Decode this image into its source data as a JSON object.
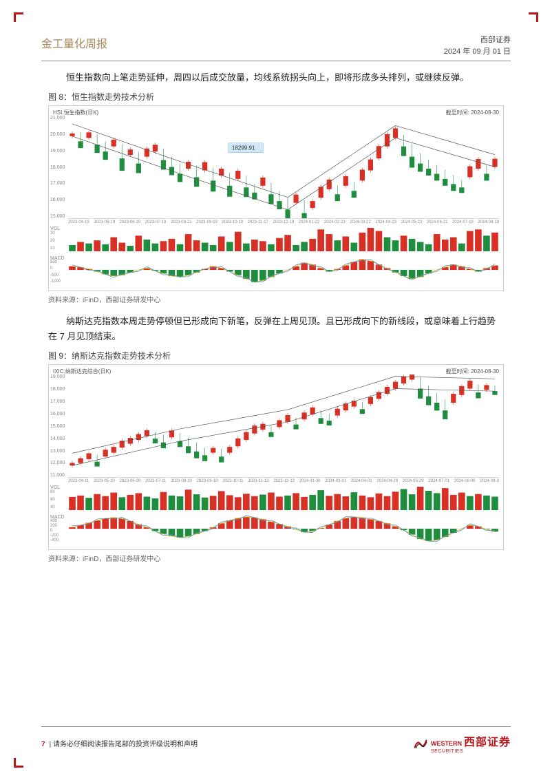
{
  "header": {
    "report_type": "金工量化周报",
    "company": "西部证券",
    "date": "2024 年 09 月 01 日"
  },
  "para1": "恒生指数向上笔走势延伸，周四以后成交放量，均线系统拐头向上，即将形成多头排列，或继续反弹。",
  "fig8": {
    "label": "图 8：",
    "title": "恒生指数走势技术分析",
    "chart_name": "HSI.恒生指数(日K)",
    "end_date_label": "截至时间: 2024-08-30",
    "annotation": "18299.91",
    "y_ticks": [
      "21,000",
      "20,000",
      "19,000",
      "18,000",
      "17,000",
      "16,000",
      "15,000"
    ],
    "x_ticks": [
      "2023-04-19",
      "2023-05-19",
      "2023-06-19",
      "2023-07-19",
      "2023-08-21",
      "2023-09-19",
      "2023-10-19",
      "2023-11-17",
      "2023-12-19",
      "2024-01-22",
      "2024-02-23",
      "2024-03-22",
      "2024-04-23",
      "2024-05-23",
      "2024-06-21",
      "2024-07-19",
      "2024-08-19"
    ],
    "vol_label": "VOL",
    "vol_y": [
      "30",
      "20",
      "10"
    ],
    "macd_label": "MACD",
    "macd_y": [
      "500",
      "0",
      "-500",
      "-1000"
    ],
    "price_series": [
      19800,
      19500,
      19700,
      19300,
      18900,
      19200,
      18500,
      18700,
      18200,
      18600,
      18900,
      18400,
      18000,
      17600,
      17900,
      17400,
      17800,
      17200,
      17500,
      16900,
      17300,
      16800,
      16500,
      16900,
      16400,
      16000,
      15500,
      15900,
      15300,
      15600,
      16200,
      16700,
      16400,
      16900,
      16600,
      17200,
      17800,
      18500,
      19200,
      19700,
      19200,
      18600,
      18200,
      17900,
      17600,
      17300,
      17000,
      16800,
      17400,
      17900,
      17600,
      18000
    ],
    "ylim": [
      15000,
      21000
    ],
    "vol_series": [
      8,
      12,
      10,
      14,
      9,
      18,
      11,
      7,
      20,
      15,
      10,
      13,
      16,
      9,
      22,
      14,
      11,
      8,
      19,
      12,
      25,
      10,
      15,
      13,
      9,
      17,
      21,
      8,
      12,
      16,
      28,
      22,
      14,
      19,
      11,
      24,
      30,
      26,
      18,
      14,
      20,
      16,
      12,
      9,
      22,
      15,
      18,
      10,
      26,
      28,
      20,
      24
    ],
    "vol_colors": [
      "g",
      "r",
      "g",
      "r",
      "g",
      "r",
      "r",
      "g",
      "r",
      "g",
      "g",
      "r",
      "r",
      "g",
      "r",
      "r",
      "g",
      "g",
      "r",
      "g",
      "r",
      "g",
      "r",
      "r",
      "g",
      "r",
      "r",
      "g",
      "g",
      "r",
      "r",
      "r",
      "g",
      "r",
      "g",
      "r",
      "r",
      "r",
      "g",
      "g",
      "r",
      "g",
      "g",
      "g",
      "r",
      "r",
      "r",
      "g",
      "r",
      "r",
      "g",
      "r"
    ],
    "macd_series": [
      200,
      150,
      50,
      -100,
      -250,
      -350,
      -300,
      -150,
      0,
      100,
      -50,
      -200,
      -350,
      -400,
      -300,
      -150,
      50,
      200,
      100,
      -100,
      -300,
      -500,
      -700,
      -600,
      -400,
      -200,
      0,
      200,
      400,
      300,
      100,
      -100,
      50,
      250,
      450,
      600,
      500,
      300,
      100,
      -150,
      -350,
      -500,
      -400,
      -200,
      0,
      150,
      300,
      200,
      50,
      -100,
      100,
      250
    ],
    "colors": {
      "up": "#d93025",
      "down": "#1e8e3e",
      "line": "#555555",
      "grid": "#eeeeee",
      "bg": "#ffffff",
      "box": "#cfe8f7"
    }
  },
  "source8": "资料来源：iFinD，西部证券研发中心",
  "para2": "纳斯达克指数本周走势停顿但已形成向下新笔，反弹在上周见顶。且已形成向下的新线段，或意味着上行趋势在 7 月见顶结束。",
  "fig9": {
    "label": "图 9：",
    "title": "纳斯达克指数走势技术分析",
    "chart_name": "IXIC.纳斯达克综合(日K)",
    "end_date_label": "截至时间: 2024-08-30",
    "y_ticks": [
      "19,000",
      "18,000",
      "17,000",
      "16,000",
      "15,000",
      "14,000",
      "13,000",
      "12,000",
      "11,000"
    ],
    "x_ticks": [
      "2023-04-11",
      "2023-05-10",
      "2023-06-09",
      "2023-07-11",
      "2023-08-10",
      "2023-09-18",
      "2023-10-11",
      "2023-11-13",
      "2023-12-13",
      "2024-01-30",
      "2024-03-01",
      "2024-04-01",
      "2024-04-29",
      "2024-05-29",
      "2024-07-01",
      "2024-08-06",
      "2024-09-0"
    ],
    "vol_label": "VOL",
    "vol_y": [
      "80",
      "60",
      "40"
    ],
    "macd_label": "MACD",
    "macd_y": [
      "400",
      "200",
      "0",
      "-200",
      "-400"
    ],
    "price_series": [
      11900,
      12100,
      12400,
      12200,
      12600,
      12900,
      13300,
      13600,
      13900,
      14200,
      14000,
      13700,
      14100,
      13800,
      13400,
      13000,
      12700,
      12900,
      12600,
      12900,
      13400,
      13900,
      14400,
      14700,
      14500,
      14900,
      15300,
      15100,
      15500,
      15900,
      15600,
      15400,
      15800,
      16200,
      16500,
      16300,
      16700,
      17100,
      17500,
      17900,
      18300,
      18600,
      17900,
      17300,
      16800,
      16200,
      16800,
      17400,
      17900,
      17600,
      17800,
      17700
    ],
    "ylim": [
      11000,
      19000
    ],
    "vol_series": [
      45,
      50,
      42,
      55,
      48,
      60,
      44,
      52,
      58,
      46,
      40,
      62,
      50,
      47,
      70,
      54,
      43,
      49,
      65,
      51,
      44,
      56,
      48,
      53,
      60,
      46,
      50,
      58,
      45,
      52,
      68,
      49,
      55,
      47,
      61,
      50,
      44,
      57,
      48,
      63,
      72,
      54,
      80,
      66,
      58,
      75,
      52,
      60,
      48,
      55,
      50,
      46
    ],
    "vol_colors": [
      "r",
      "r",
      "g",
      "r",
      "r",
      "r",
      "g",
      "r",
      "r",
      "g",
      "g",
      "r",
      "g",
      "g",
      "r",
      "g",
      "g",
      "r",
      "r",
      "r",
      "r",
      "r",
      "r",
      "g",
      "r",
      "r",
      "g",
      "r",
      "r",
      "g",
      "g",
      "r",
      "r",
      "r",
      "g",
      "r",
      "r",
      "r",
      "r",
      "r",
      "g",
      "g",
      "r",
      "g",
      "g",
      "r",
      "r",
      "r",
      "g",
      "r",
      "g",
      "g"
    ],
    "macd_series": [
      50,
      120,
      200,
      280,
      350,
      380,
      340,
      260,
      150,
      50,
      -80,
      -180,
      -250,
      -300,
      -260,
      -180,
      -80,
      50,
      180,
      280,
      360,
      400,
      380,
      320,
      240,
      160,
      80,
      -20,
      -120,
      -80,
      20,
      140,
      260,
      360,
      400,
      380,
      320,
      260,
      180,
      80,
      -50,
      -200,
      -350,
      -420,
      -380,
      -280,
      -140,
      0,
      120,
      80,
      -20,
      -100
    ],
    "colors": {
      "up": "#d93025",
      "down": "#1e8e3e",
      "line": "#555555",
      "grid": "#eeeeee",
      "bg": "#ffffff",
      "box": "#cfe8f7"
    }
  },
  "source9": "资料来源：iFinD，西部证券研发中心",
  "footer": {
    "page": "7",
    "disclaimer": "| 请务必仔细阅读报告尾部的投资评级说明和声明",
    "logo_en": "WESTERN",
    "logo_sub": "SECURITIES",
    "logo_cn": "西部证券"
  }
}
